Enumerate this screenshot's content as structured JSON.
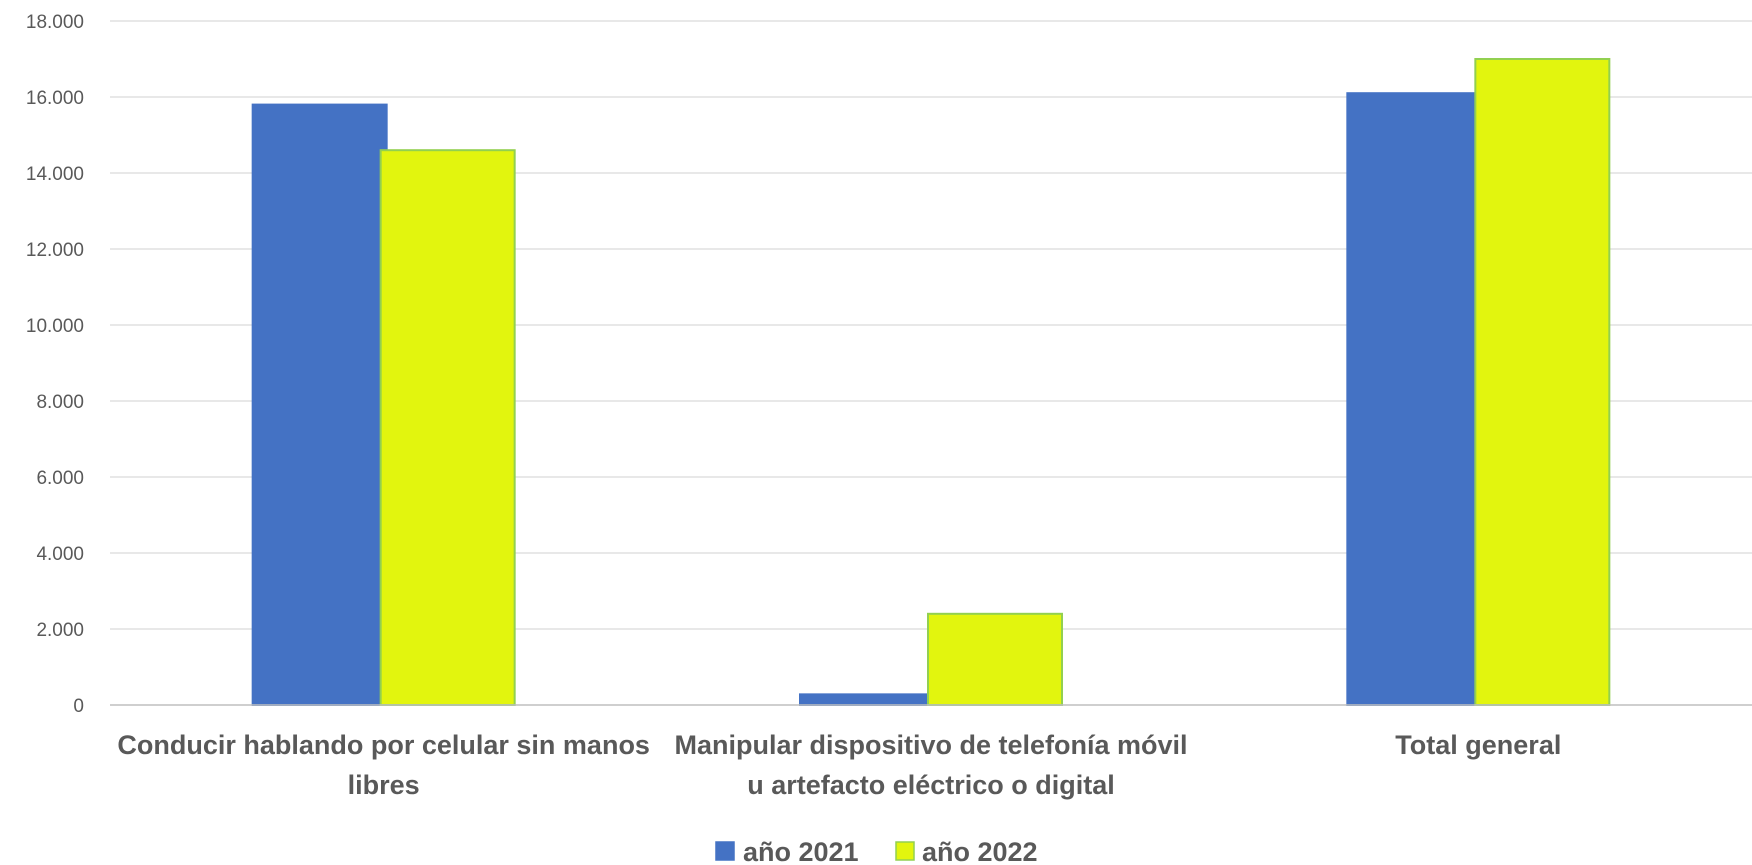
{
  "chart_data": {
    "type": "bar",
    "categories": [
      [
        "Conducir hablando por celular sin manos",
        "libres"
      ],
      [
        "Manipular dispositivo de telefonía móvil",
        "u artefacto eléctrico o digital"
      ],
      [
        "Total general"
      ]
    ],
    "series": [
      {
        "name": "año 2021",
        "color": "#4472C4",
        "stroke": "#4472C4",
        "values": [
          15800,
          280,
          16100
        ]
      },
      {
        "name": "año 2022",
        "color": "#E2F50E",
        "stroke": "#92D050",
        "values": [
          14600,
          2400,
          17000
        ]
      }
    ],
    "ylim": [
      0,
      18000
    ],
    "yticks": [
      {
        "value": 0,
        "label": "0"
      },
      {
        "value": 2000,
        "label": "2.000"
      },
      {
        "value": 4000,
        "label": "4.000"
      },
      {
        "value": 6000,
        "label": "6.000"
      },
      {
        "value": 8000,
        "label": "8.000"
      },
      {
        "value": 10000,
        "label": "10.000"
      },
      {
        "value": 12000,
        "label": "12.000"
      },
      {
        "value": 14000,
        "label": "14.000"
      },
      {
        "value": 16000,
        "label": "16.000"
      },
      {
        "value": 18000,
        "label": "18.000"
      }
    ],
    "grid": true,
    "legend": "bottom-center"
  }
}
